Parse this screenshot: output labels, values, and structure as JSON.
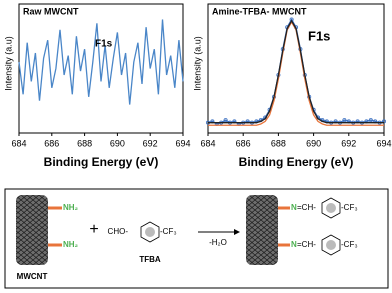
{
  "chart_data": [
    {
      "type": "line",
      "title": "Raw MWCNT",
      "annotations": [
        "F1s"
      ],
      "x_label": "Binding Energy (eV)",
      "y_label": "Intensity (a.u)",
      "x": [
        684,
        684.25,
        684.5,
        684.75,
        685,
        685.25,
        685.5,
        685.75,
        686,
        686.25,
        686.5,
        686.75,
        687,
        687.25,
        687.5,
        687.75,
        688,
        688.25,
        688.5,
        688.75,
        689,
        689.25,
        689.5,
        689.75,
        690,
        690.25,
        690.5,
        690.75,
        691,
        691.25,
        691.5,
        691.75,
        692,
        692.25,
        692.5,
        692.75,
        693,
        693.25,
        693.5,
        693.75,
        694
      ],
      "series": [
        {
          "color": "#4a86c8",
          "values": [
            55,
            30,
            70,
            40,
            62,
            25,
            58,
            72,
            35,
            50,
            80,
            45,
            60,
            30,
            75,
            48,
            65,
            28,
            55,
            85,
            40,
            68,
            35,
            58,
            78,
            45,
            62,
            22,
            55,
            70,
            38,
            82,
            50,
            65,
            30,
            88,
            45,
            60,
            35,
            72,
            40
          ]
        }
      ],
      "xlim": [
        684,
        694
      ],
      "xticks": [
        684,
        686,
        688,
        690,
        692,
        694
      ],
      "ylim": [
        0,
        100
      ]
    },
    {
      "type": "line",
      "title": "Amine-TFBA- MWCNT",
      "annotations": [
        "F1s"
      ],
      "x_label": "Binding Energy (eV)",
      "y_label": "Intensity (a.u)",
      "x": [
        684,
        684.25,
        684.5,
        684.75,
        685,
        685.25,
        685.5,
        685.75,
        686,
        686.25,
        686.5,
        686.75,
        687,
        687.25,
        687.5,
        687.75,
        688,
        688.25,
        688.5,
        688.75,
        689,
        689.25,
        689.5,
        689.75,
        690,
        690.25,
        690.5,
        690.75,
        691,
        691.25,
        691.5,
        691.75,
        692,
        692.25,
        692.5,
        692.75,
        693,
        693.25,
        693.5,
        693.75,
        694
      ],
      "series": [
        {
          "color": "#3a6fc0",
          "markers": true,
          "values": [
            8,
            9,
            7,
            8,
            10,
            8,
            9,
            7,
            8,
            9,
            8,
            9,
            10,
            12,
            18,
            28,
            45,
            65,
            82,
            88,
            82,
            65,
            45,
            28,
            18,
            12,
            10,
            9,
            8,
            9,
            8,
            10,
            9,
            8,
            9,
            8,
            9,
            10,
            9,
            8,
            9
          ]
        },
        {
          "color": "#e8743b",
          "values": [
            6,
            6,
            6,
            6,
            6,
            6,
            6,
            6,
            6,
            6,
            6,
            6,
            7,
            9,
            14,
            25,
            42,
            62,
            80,
            86,
            80,
            62,
            42,
            25,
            14,
            9,
            7,
            6,
            6,
            6,
            6,
            6,
            6,
            6,
            6,
            6,
            6,
            6,
            6,
            6,
            6
          ]
        },
        {
          "color": "#222222",
          "values": [
            8,
            8,
            8,
            8,
            8,
            8,
            8,
            8,
            8,
            8,
            8,
            8,
            9,
            11,
            17,
            28,
            45,
            64,
            81,
            87,
            81,
            64,
            45,
            28,
            17,
            11,
            9,
            8,
            8,
            8,
            8,
            8,
            8,
            8,
            8,
            8,
            8,
            8,
            8,
            8,
            8
          ]
        }
      ],
      "xlim": [
        684,
        694
      ],
      "xticks": [
        684,
        686,
        688,
        690,
        692,
        694
      ],
      "ylim": [
        0,
        100
      ]
    }
  ],
  "scheme": {
    "reactant_groups": [
      "NH₂",
      "NH₂"
    ],
    "reactant_label": "MWCNT",
    "plus": "+",
    "reagent_left": "CHO-",
    "reagent_right": "-CF₃",
    "reagent_label": "TFBA",
    "arrow_label": "-H₂O",
    "product_n": [
      "N",
      "N"
    ],
    "product_link": [
      "=CH-",
      "=CH-"
    ],
    "product_right": [
      "-CF₃",
      "-CF₃"
    ]
  }
}
